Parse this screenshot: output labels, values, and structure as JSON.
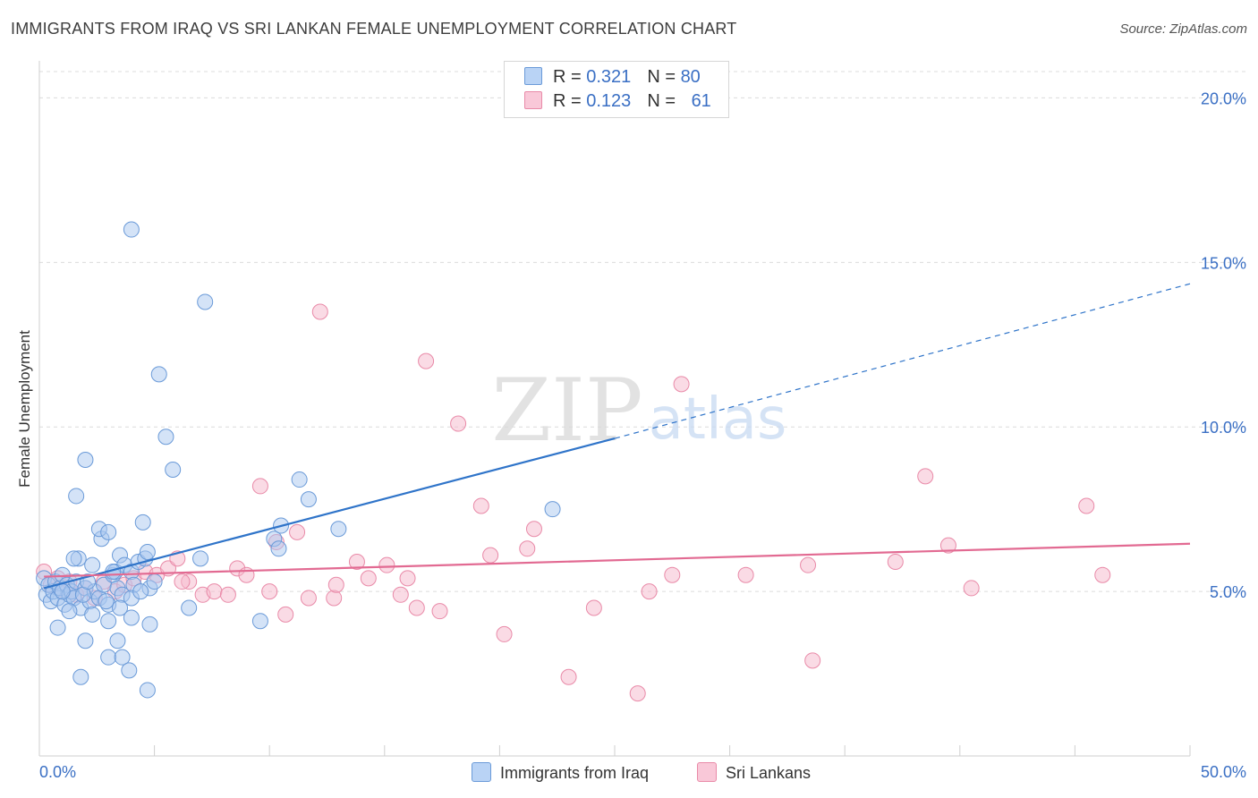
{
  "title": "IMMIGRANTS FROM IRAQ VS SRI LANKAN FEMALE UNEMPLOYMENT CORRELATION CHART",
  "source": "Source: ZipAtlas.com",
  "watermark": {
    "zip": "ZIP",
    "atlas": "atlas"
  },
  "legend": {
    "rows": [
      {
        "r_label": "R = ",
        "r_value": "0.321",
        "n_label": "N = ",
        "n_value": "80"
      },
      {
        "r_label": "R = ",
        "r_value": "0.123",
        "n_label": "N = ",
        "n_value": "61"
      }
    ]
  },
  "colors": {
    "blue_fill": "#a9c8f0",
    "blue_stroke": "#6a9ad8",
    "blue_line": "#2f74c9",
    "pink_fill": "#f6b8cc",
    "pink_stroke": "#e98aa8",
    "pink_line": "#e26a92",
    "grid": "#dcdcdc",
    "tick_text": "#3a6fc4"
  },
  "chart_data": {
    "type": "scatter",
    "xlabel": "",
    "ylabel": "Female Unemployment",
    "xlim": [
      0,
      50
    ],
    "ylim": [
      0,
      20.8
    ],
    "x_tick_labels": [
      "0.0%",
      "50.0%"
    ],
    "y_ticks": [
      5,
      10,
      15,
      20
    ],
    "y_tick_labels": [
      "5.0%",
      "10.0%",
      "15.0%",
      "20.0%"
    ],
    "grid": "horizontal dashed",
    "legend_position": "top-center",
    "series": [
      {
        "name": "Immigrants from Iraq",
        "color": "blue",
        "trend": {
          "x": [
            0.2,
            25
          ],
          "y": [
            5.1,
            9.65
          ],
          "extend_dashed_to_x": 50,
          "extend_dashed_y": 14.35
        },
        "points": [
          [
            0.2,
            5.4
          ],
          [
            0.3,
            4.9
          ],
          [
            0.4,
            5.2
          ],
          [
            0.5,
            4.7
          ],
          [
            0.6,
            5.0
          ],
          [
            0.7,
            5.3
          ],
          [
            0.8,
            4.8
          ],
          [
            0.9,
            5.1
          ],
          [
            1.0,
            5.5
          ],
          [
            1.1,
            4.6
          ],
          [
            1.2,
            5.2
          ],
          [
            1.3,
            4.9
          ],
          [
            1.4,
            5.0
          ],
          [
            1.5,
            4.8
          ],
          [
            1.6,
            5.3
          ],
          [
            1.7,
            6.0
          ],
          [
            1.8,
            4.5
          ],
          [
            2.0,
            5.1
          ],
          [
            2.2,
            4.7
          ],
          [
            2.4,
            5.0
          ],
          [
            2.6,
            4.8
          ],
          [
            2.8,
            5.2
          ],
          [
            3.0,
            4.6
          ],
          [
            3.2,
            5.5
          ],
          [
            3.4,
            5.1
          ],
          [
            3.6,
            4.9
          ],
          [
            0.8,
            3.9
          ],
          [
            1.3,
            4.4
          ],
          [
            1.9,
            4.9
          ],
          [
            2.3,
            4.3
          ],
          [
            2.9,
            4.7
          ],
          [
            2.1,
            5.3
          ],
          [
            1.5,
            6.0
          ],
          [
            2.3,
            5.8
          ],
          [
            2.7,
            6.6
          ],
          [
            2.6,
            6.9
          ],
          [
            3.0,
            6.8
          ],
          [
            3.3,
            5.6
          ],
          [
            3.5,
            6.1
          ],
          [
            3.7,
            5.8
          ],
          [
            4.0,
            5.6
          ],
          [
            4.1,
            5.2
          ],
          [
            4.3,
            5.9
          ],
          [
            4.6,
            6.0
          ],
          [
            4.5,
            7.1
          ],
          [
            4.7,
            6.2
          ],
          [
            4.8,
            5.1
          ],
          [
            1.6,
            7.9
          ],
          [
            2.0,
            9.0
          ],
          [
            3.0,
            4.1
          ],
          [
            3.5,
            4.5
          ],
          [
            4.0,
            4.2
          ],
          [
            4.8,
            4.0
          ],
          [
            5.0,
            5.3
          ],
          [
            5.5,
            9.7
          ],
          [
            5.8,
            8.7
          ],
          [
            2.0,
            3.5
          ],
          [
            3.0,
            3.0
          ],
          [
            3.4,
            3.5
          ],
          [
            3.6,
            3.0
          ],
          [
            3.9,
            2.6
          ],
          [
            4.7,
            2.0
          ],
          [
            1.8,
            2.4
          ],
          [
            4.0,
            4.8
          ],
          [
            5.2,
            11.6
          ],
          [
            4.0,
            16.0
          ],
          [
            7.2,
            13.8
          ],
          [
            6.5,
            4.5
          ],
          [
            7.0,
            6.0
          ],
          [
            9.6,
            4.1
          ],
          [
            10.2,
            6.6
          ],
          [
            10.5,
            7.0
          ],
          [
            11.3,
            8.4
          ],
          [
            11.7,
            7.8
          ],
          [
            10.4,
            6.3
          ],
          [
            13.0,
            6.9
          ],
          [
            22.3,
            7.5
          ],
          [
            4.4,
            5.0
          ],
          [
            3.2,
            5.6
          ],
          [
            1.0,
            5.0
          ]
        ]
      },
      {
        "name": "Sri Lankans",
        "color": "pink",
        "trend": {
          "x": [
            0.2,
            50
          ],
          "y": [
            5.45,
            6.45
          ]
        },
        "points": [
          [
            0.2,
            5.6
          ],
          [
            0.5,
            5.2
          ],
          [
            0.8,
            5.4
          ],
          [
            1.0,
            5.0
          ],
          [
            1.3,
            5.3
          ],
          [
            1.6,
            4.9
          ],
          [
            2.0,
            5.1
          ],
          [
            2.4,
            4.8
          ],
          [
            2.8,
            5.3
          ],
          [
            3.3,
            5.0
          ],
          [
            3.7,
            5.2
          ],
          [
            4.1,
            5.4
          ],
          [
            4.6,
            5.6
          ],
          [
            5.1,
            5.5
          ],
          [
            5.6,
            5.7
          ],
          [
            6.0,
            6.0
          ],
          [
            6.5,
            5.3
          ],
          [
            7.1,
            4.9
          ],
          [
            7.6,
            5.0
          ],
          [
            8.2,
            4.9
          ],
          [
            8.6,
            5.7
          ],
          [
            9.0,
            5.5
          ],
          [
            9.6,
            8.2
          ],
          [
            10.0,
            5.0
          ],
          [
            10.3,
            6.5
          ],
          [
            10.7,
            4.3
          ],
          [
            11.2,
            6.8
          ],
          [
            11.7,
            4.8
          ],
          [
            12.2,
            13.5
          ],
          [
            12.8,
            4.8
          ],
          [
            12.9,
            5.2
          ],
          [
            13.8,
            5.9
          ],
          [
            14.3,
            5.4
          ],
          [
            15.1,
            5.8
          ],
          [
            15.7,
            4.9
          ],
          [
            16.0,
            5.4
          ],
          [
            16.4,
            4.5
          ],
          [
            16.8,
            12.0
          ],
          [
            17.4,
            4.4
          ],
          [
            18.2,
            10.1
          ],
          [
            19.2,
            7.6
          ],
          [
            19.6,
            6.1
          ],
          [
            20.2,
            3.7
          ],
          [
            21.2,
            6.3
          ],
          [
            21.5,
            6.9
          ],
          [
            23.0,
            2.4
          ],
          [
            24.1,
            4.5
          ],
          [
            26.0,
            1.9
          ],
          [
            26.5,
            5.0
          ],
          [
            27.5,
            5.5
          ],
          [
            27.9,
            11.3
          ],
          [
            30.7,
            5.5
          ],
          [
            33.4,
            5.8
          ],
          [
            33.6,
            2.9
          ],
          [
            37.2,
            5.9
          ],
          [
            38.5,
            8.5
          ],
          [
            39.5,
            6.4
          ],
          [
            40.5,
            5.1
          ],
          [
            45.5,
            7.6
          ],
          [
            46.2,
            5.5
          ],
          [
            6.2,
            5.3
          ]
        ]
      }
    ]
  },
  "bottom_legend": [
    "Immigrants from Iraq",
    "Sri Lankans"
  ]
}
